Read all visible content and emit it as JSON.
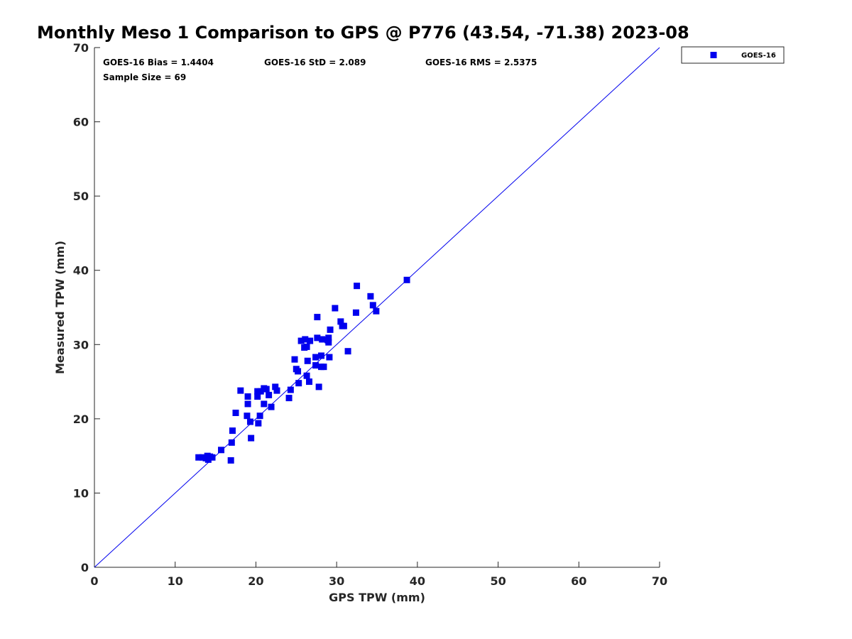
{
  "colors": {
    "series": "#0000ee",
    "axis": "#262626"
  },
  "chart_data": {
    "type": "scatter",
    "title": "Monthly Meso 1 Comparison to GPS @ P776 (43.54, -71.38) 2023-08",
    "xlabel": "GPS TPW (mm)",
    "ylabel": "Measured TPW (mm)",
    "xlim": [
      0,
      70
    ],
    "ylim": [
      0,
      70
    ],
    "xticks": [
      "0",
      "10",
      "20",
      "30",
      "40",
      "50",
      "60",
      "70"
    ],
    "yticks": [
      "0",
      "10",
      "20",
      "30",
      "40",
      "50",
      "60",
      "70"
    ],
    "grid": false,
    "legend_position": "outside-top-right",
    "stats": {
      "bias": "GOES-16 Bias = 1.4404",
      "std": "GOES-16 StD = 2.089",
      "rms": "GOES-16 RMS = 2.5375",
      "sample": "Sample Size = 69"
    },
    "reference_line": {
      "x": [
        0,
        70
      ],
      "y": [
        0,
        70
      ]
    },
    "series": [
      {
        "name": "GOES-16",
        "marker": "square",
        "color": "#0000ee",
        "points": [
          [
            12.9,
            14.8
          ],
          [
            13.4,
            14.8
          ],
          [
            13.8,
            14.7
          ],
          [
            14.1,
            14.5
          ],
          [
            14.0,
            15.0
          ],
          [
            14.3,
            14.9
          ],
          [
            14.6,
            14.8
          ],
          [
            15.7,
            15.8
          ],
          [
            16.9,
            14.4
          ],
          [
            17.0,
            16.8
          ],
          [
            17.1,
            18.4
          ],
          [
            17.5,
            20.8
          ],
          [
            18.1,
            23.8
          ],
          [
            18.9,
            20.4
          ],
          [
            19.0,
            22.0
          ],
          [
            19.0,
            23.0
          ],
          [
            19.3,
            19.6
          ],
          [
            19.4,
            17.4
          ],
          [
            20.2,
            23.0
          ],
          [
            20.2,
            23.7
          ],
          [
            20.3,
            19.4
          ],
          [
            20.5,
            20.4
          ],
          [
            20.6,
            23.7
          ],
          [
            21.0,
            24.1
          ],
          [
            21.0,
            22.0
          ],
          [
            21.3,
            24.0
          ],
          [
            21.6,
            23.2
          ],
          [
            21.9,
            21.6
          ],
          [
            22.4,
            24.3
          ],
          [
            22.6,
            23.8
          ],
          [
            24.1,
            22.8
          ],
          [
            24.3,
            23.9
          ],
          [
            24.8,
            28.0
          ],
          [
            25.0,
            26.7
          ],
          [
            25.2,
            26.4
          ],
          [
            25.3,
            24.8
          ],
          [
            25.6,
            30.5
          ],
          [
            26.0,
            29.6
          ],
          [
            26.1,
            30.7
          ],
          [
            26.3,
            25.8
          ],
          [
            26.3,
            29.7
          ],
          [
            26.4,
            27.8
          ],
          [
            26.6,
            25.0
          ],
          [
            26.7,
            30.5
          ],
          [
            27.4,
            28.3
          ],
          [
            27.4,
            27.2
          ],
          [
            27.6,
            33.7
          ],
          [
            27.6,
            30.9
          ],
          [
            27.8,
            24.3
          ],
          [
            28.1,
            28.5
          ],
          [
            28.1,
            27.0
          ],
          [
            28.2,
            30.7
          ],
          [
            28.4,
            27.0
          ],
          [
            28.9,
            30.6
          ],
          [
            29.0,
            30.9
          ],
          [
            29.0,
            30.3
          ],
          [
            29.1,
            28.3
          ],
          [
            29.2,
            32.0
          ],
          [
            29.8,
            34.9
          ],
          [
            30.5,
            33.1
          ],
          [
            30.7,
            32.5
          ],
          [
            30.9,
            32.5
          ],
          [
            31.4,
            29.1
          ],
          [
            32.4,
            34.3
          ],
          [
            32.5,
            37.9
          ],
          [
            34.2,
            36.5
          ],
          [
            34.5,
            35.3
          ],
          [
            34.9,
            34.5
          ],
          [
            38.7,
            38.7
          ]
        ]
      }
    ]
  }
}
